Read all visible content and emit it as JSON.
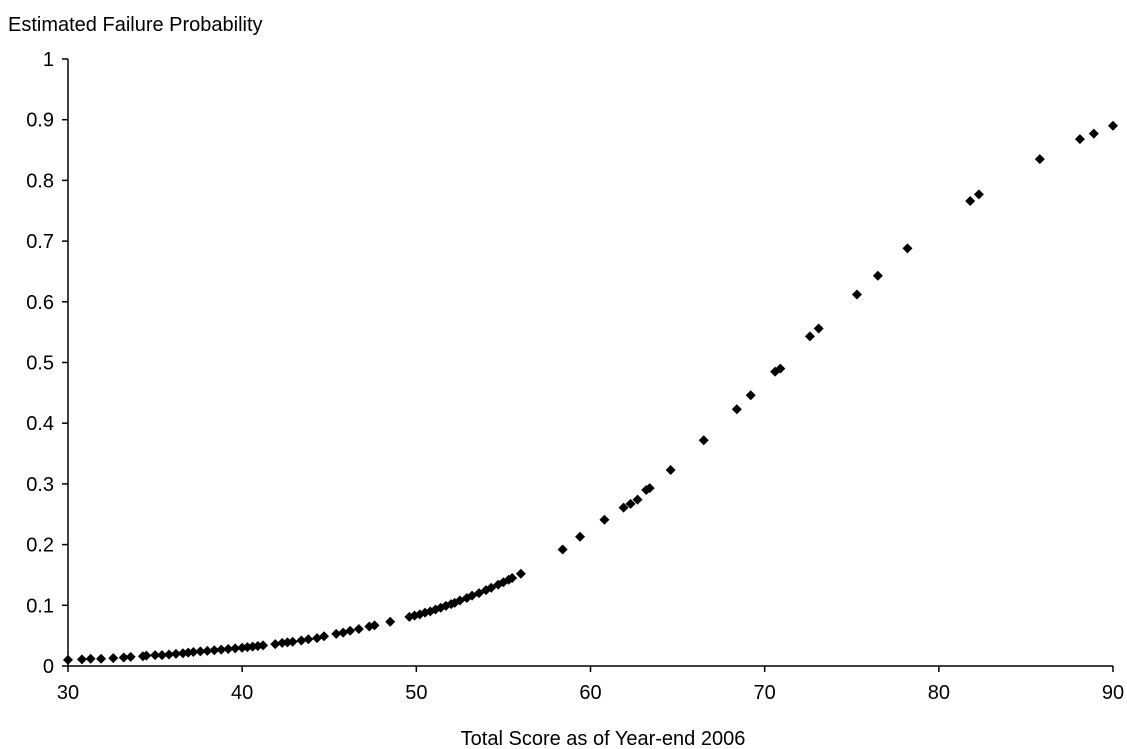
{
  "chart_data": {
    "type": "scatter",
    "title": "",
    "ylabel": "Estimated Failure Probability",
    "xlabel": "Total Score as of Year-end 2006",
    "xlim": [
      30,
      90
    ],
    "ylim": [
      0,
      1
    ],
    "x_ticks": [
      30,
      40,
      50,
      60,
      70,
      80,
      90
    ],
    "y_ticks": [
      0,
      0.1,
      0.2,
      0.3,
      0.4,
      0.5,
      0.6,
      0.7,
      0.8,
      0.9,
      1
    ],
    "y_tick_labels": [
      "0",
      "0.1",
      "0.2",
      "0.3",
      "0.4",
      "0.5",
      "0.6",
      "0.7",
      "0.8",
      "0.9",
      "1"
    ],
    "grid": false,
    "legend": "none",
    "marker": "diamond",
    "marker_color": "#000000",
    "series": [
      {
        "points": [
          [
            30.0,
            0.01
          ],
          [
            30.8,
            0.011
          ],
          [
            31.3,
            0.012
          ],
          [
            31.9,
            0.012
          ],
          [
            32.6,
            0.013
          ],
          [
            33.2,
            0.014
          ],
          [
            33.6,
            0.015
          ],
          [
            34.3,
            0.016
          ],
          [
            34.5,
            0.017
          ],
          [
            35.0,
            0.018
          ],
          [
            35.4,
            0.018
          ],
          [
            35.8,
            0.019
          ],
          [
            36.2,
            0.02
          ],
          [
            36.6,
            0.021
          ],
          [
            36.9,
            0.022
          ],
          [
            37.2,
            0.023
          ],
          [
            37.6,
            0.024
          ],
          [
            38.0,
            0.025
          ],
          [
            38.4,
            0.026
          ],
          [
            38.8,
            0.027
          ],
          [
            39.2,
            0.028
          ],
          [
            39.6,
            0.029
          ],
          [
            40.0,
            0.03
          ],
          [
            40.3,
            0.031
          ],
          [
            40.6,
            0.032
          ],
          [
            40.9,
            0.033
          ],
          [
            41.2,
            0.034
          ],
          [
            41.9,
            0.036
          ],
          [
            42.3,
            0.038
          ],
          [
            42.6,
            0.039
          ],
          [
            42.9,
            0.04
          ],
          [
            43.4,
            0.042
          ],
          [
            43.8,
            0.044
          ],
          [
            44.3,
            0.046
          ],
          [
            44.7,
            0.049
          ],
          [
            45.4,
            0.053
          ],
          [
            45.8,
            0.055
          ],
          [
            46.2,
            0.058
          ],
          [
            46.7,
            0.061
          ],
          [
            47.3,
            0.065
          ],
          [
            47.6,
            0.067
          ],
          [
            48.5,
            0.073
          ],
          [
            49.6,
            0.081
          ],
          [
            49.9,
            0.083
          ],
          [
            50.2,
            0.085
          ],
          [
            50.5,
            0.088
          ],
          [
            50.8,
            0.09
          ],
          [
            51.1,
            0.093
          ],
          [
            51.4,
            0.096
          ],
          [
            51.7,
            0.099
          ],
          [
            52.0,
            0.102
          ],
          [
            52.2,
            0.104
          ],
          [
            52.5,
            0.108
          ],
          [
            52.9,
            0.112
          ],
          [
            53.2,
            0.116
          ],
          [
            53.6,
            0.12
          ],
          [
            54.0,
            0.125
          ],
          [
            54.3,
            0.129
          ],
          [
            54.7,
            0.134
          ],
          [
            55.0,
            0.138
          ],
          [
            55.3,
            0.142
          ],
          [
            55.5,
            0.145
          ],
          [
            56.0,
            0.152
          ],
          [
            58.4,
            0.192
          ],
          [
            59.4,
            0.213
          ],
          [
            60.8,
            0.241
          ],
          [
            61.9,
            0.261
          ],
          [
            62.3,
            0.267
          ],
          [
            62.7,
            0.274
          ],
          [
            63.2,
            0.29
          ],
          [
            63.4,
            0.293
          ],
          [
            64.6,
            0.323
          ],
          [
            66.5,
            0.372
          ],
          [
            68.4,
            0.423
          ],
          [
            69.2,
            0.446
          ],
          [
            70.6,
            0.485
          ],
          [
            70.9,
            0.49
          ],
          [
            72.6,
            0.543
          ],
          [
            73.1,
            0.556
          ],
          [
            75.3,
            0.612
          ],
          [
            76.5,
            0.643
          ],
          [
            78.2,
            0.688
          ],
          [
            81.8,
            0.766
          ],
          [
            82.3,
            0.777
          ],
          [
            85.8,
            0.835
          ],
          [
            88.1,
            0.868
          ],
          [
            88.9,
            0.877
          ],
          [
            90.0,
            0.89
          ]
        ]
      }
    ]
  }
}
